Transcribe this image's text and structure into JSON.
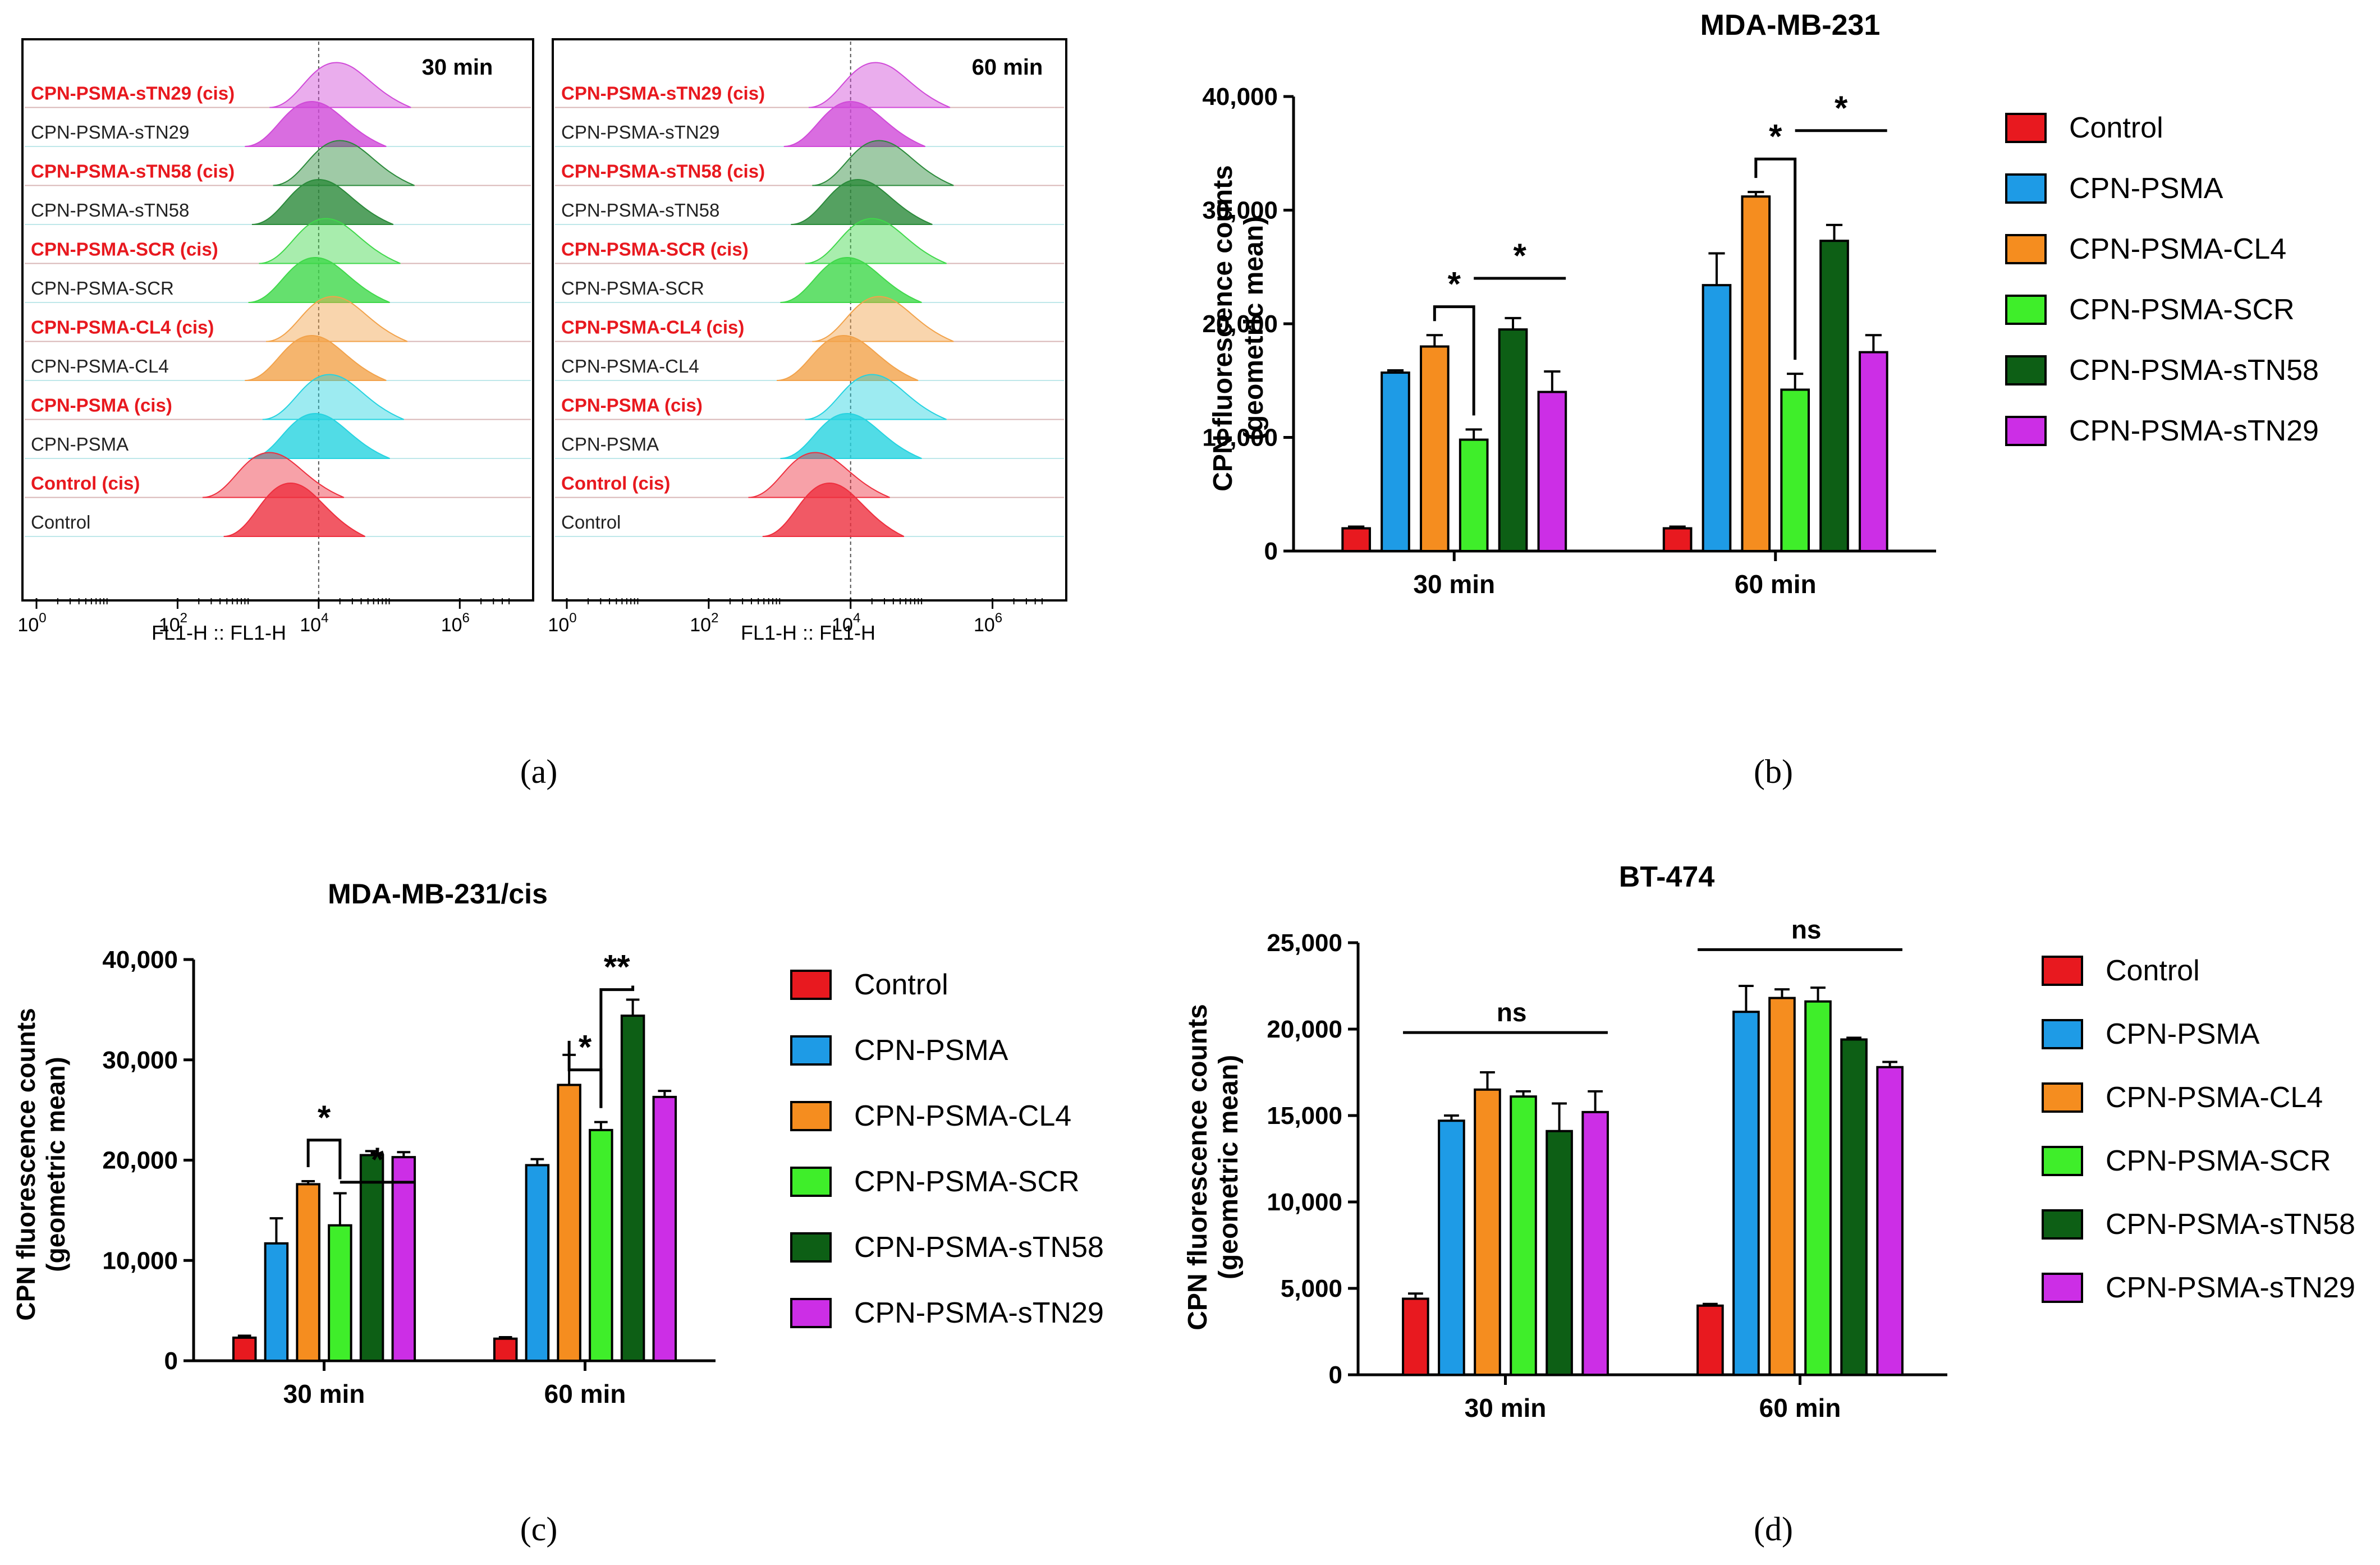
{
  "panel_labels": {
    "a": "(a)",
    "b": "(b)",
    "c": "(c)",
    "d": "(d)"
  },
  "flow": {
    "rows": [
      "CPN-PSMA-sTN29 (cis)",
      "CPN-PSMA-sTN29",
      "CPN-PSMA-sTN58 (cis)",
      "CPN-PSMA-sTN58",
      "CPN-PSMA-SCR (cis)",
      "CPN-PSMA-SCR",
      "CPN-PSMA-CL4 (cis)",
      "CPN-PSMA-CL4",
      "CPN-PSMA (cis)",
      "CPN-PSMA",
      "Control (cis)",
      "Control"
    ],
    "cis_rows": [
      true,
      false,
      true,
      false,
      true,
      false,
      true,
      false,
      true,
      false,
      true,
      false
    ],
    "axis_label": "FL1-H :: FL1-H",
    "ticks": [
      {
        "base": "10",
        "exp": "0"
      },
      {
        "base": "10",
        "exp": "2"
      },
      {
        "base": "10",
        "exp": "4"
      },
      {
        "base": "10",
        "exp": "6"
      }
    ],
    "gate_log10": 4.0,
    "panels": [
      {
        "title": "30 min",
        "peaks_log10": [
          4.25,
          3.9,
          4.3,
          4.0,
          4.1,
          3.95,
          4.2,
          3.9,
          4.15,
          3.95,
          3.3,
          3.6
        ]
      },
      {
        "title": "60 min",
        "peaks_log10": [
          4.35,
          4.0,
          4.4,
          4.1,
          4.3,
          3.95,
          4.4,
          3.9,
          4.3,
          3.95,
          3.5,
          3.7
        ]
      }
    ]
  },
  "colors": {
    "Control": "#e8191f",
    "CPN-PSMA": "#1e9be6",
    "CPN-PSMA-CL4": "#f58d1f",
    "CPN-PSMA-SCR": "#3fee2a",
    "CPN-PSMA-sTN58": "#0d5f15",
    "CPN-PSMA-sTN29": "#cc2ee6",
    "cisText": "#e8191f",
    "flow_Control": "#ee2f3e",
    "flow_CPN-PSMA": "#25d3e0",
    "flow_CPN-PSMA-CL4": "#f2a24a",
    "flow_CPN-PSMA-SCR": "#3fd84a",
    "flow_CPN-PSMA-sTN58": "#2a8a3a",
    "flow_CPN-PSMA-sTN29": "#d049d8"
  },
  "chart_data": [
    {
      "id": "b",
      "type": "bar",
      "title": "MDA-MB-231",
      "ylabel_line1": "CPN fluorescence counts",
      "ylabel_line2": "(geometric mean)",
      "ylim": [
        0,
        40000
      ],
      "yticks": [
        "0",
        "10,000",
        "20,000",
        "30,000",
        "40,000"
      ],
      "categories": [
        "30 min",
        "60 min"
      ],
      "series": [
        {
          "name": "Control",
          "values": [
            2000,
            2000
          ],
          "errors": [
            150,
            150
          ]
        },
        {
          "name": "CPN-PSMA",
          "values": [
            15700,
            23400
          ],
          "errors": [
            200,
            2800
          ]
        },
        {
          "name": "CPN-PSMA-CL4",
          "values": [
            18000,
            31200
          ],
          "errors": [
            1000,
            400
          ]
        },
        {
          "name": "CPN-PSMA-SCR",
          "values": [
            9800,
            14200
          ],
          "errors": [
            900,
            1400
          ]
        },
        {
          "name": "CPN-PSMA-sTN58",
          "values": [
            19500,
            27300
          ],
          "errors": [
            1000,
            1400
          ]
        },
        {
          "name": "CPN-PSMA-sTN29",
          "values": [
            14000,
            17500
          ],
          "errors": [
            1800,
            1500
          ]
        }
      ],
      "annotations": [
        {
          "type": "bracket",
          "text": "*",
          "category": 0,
          "from": 2,
          "to": 3,
          "y": 21500
        },
        {
          "type": "line",
          "text": "*",
          "category": 0,
          "from": 3,
          "to": 5,
          "y": 24000
        },
        {
          "type": "bracket",
          "text": "*",
          "category": 1,
          "from": 2,
          "to": 3,
          "y": 34500
        },
        {
          "type": "line",
          "text": "*",
          "category": 1,
          "from": 3,
          "to": 5,
          "y": 37000
        }
      ]
    },
    {
      "id": "c",
      "type": "bar",
      "title": "MDA-MB-231/cis",
      "ylabel_line1": "CPN fluorescence counts",
      "ylabel_line2": "(geometric mean)",
      "ylim": [
        0,
        40000
      ],
      "yticks": [
        "0",
        "10,000",
        "20,000",
        "30,000",
        "40,000"
      ],
      "categories": [
        "30 min",
        "60 min"
      ],
      "series": [
        {
          "name": "Control",
          "values": [
            2300,
            2200
          ],
          "errors": [
            200,
            150
          ]
        },
        {
          "name": "CPN-PSMA",
          "values": [
            11700,
            19500
          ],
          "errors": [
            2500,
            600
          ]
        },
        {
          "name": "CPN-PSMA-CL4",
          "values": [
            17600,
            27500
          ],
          "errors": [
            300,
            3000
          ]
        },
        {
          "name": "CPN-PSMA-SCR",
          "values": [
            13500,
            23000
          ],
          "errors": [
            3200,
            800
          ]
        },
        {
          "name": "CPN-PSMA-sTN58",
          "values": [
            20500,
            34400
          ],
          "errors": [
            400,
            1600
          ]
        },
        {
          "name": "CPN-PSMA-sTN29",
          "values": [
            20300,
            26300
          ],
          "errors": [
            500,
            600
          ]
        }
      ],
      "annotations": [
        {
          "type": "bracket",
          "text": "*",
          "category": 0,
          "from": 2,
          "to": 3,
          "y": 22000
        },
        {
          "type": "line",
          "text": "*",
          "category": 0,
          "from": 3,
          "to": 5,
          "y": 17800
        },
        {
          "type": "bracket",
          "text": "*",
          "category": 1,
          "from": 2,
          "to": 3,
          "y": 29000
        },
        {
          "type": "bracket",
          "text": "**",
          "category": 1,
          "from": 3,
          "to": 4,
          "y": 37000
        }
      ]
    },
    {
      "id": "d",
      "type": "bar",
      "title": "BT-474",
      "ylabel_line1": "CPN fluorescence counts",
      "ylabel_line2": "(geometric mean)",
      "ylim": [
        0,
        25000
      ],
      "yticks": [
        "0",
        "5,000",
        "10,000",
        "15,000",
        "20,000",
        "25,000"
      ],
      "categories": [
        "30 min",
        "60 min"
      ],
      "series": [
        {
          "name": "Control",
          "values": [
            4400,
            4000
          ],
          "errors": [
            300,
            100
          ]
        },
        {
          "name": "CPN-PSMA",
          "values": [
            14700,
            21000
          ],
          "errors": [
            300,
            1500
          ]
        },
        {
          "name": "CPN-PSMA-CL4",
          "values": [
            16500,
            21800
          ],
          "errors": [
            1000,
            500
          ]
        },
        {
          "name": "CPN-PSMA-SCR",
          "values": [
            16100,
            21600
          ],
          "errors": [
            300,
            800
          ]
        },
        {
          "name": "CPN-PSMA-sTN58",
          "values": [
            14100,
            19400
          ],
          "errors": [
            1600,
            100
          ]
        },
        {
          "name": "CPN-PSMA-sTN29",
          "values": [
            15200,
            17800
          ],
          "errors": [
            1200,
            300
          ]
        }
      ],
      "annotations": [
        {
          "type": "line",
          "text": "ns",
          "category": 0,
          "from": 0,
          "to": 5,
          "y": 19800
        },
        {
          "type": "line",
          "text": "ns",
          "category": 1,
          "from": 0,
          "to": 5,
          "y": 24600
        }
      ]
    }
  ]
}
